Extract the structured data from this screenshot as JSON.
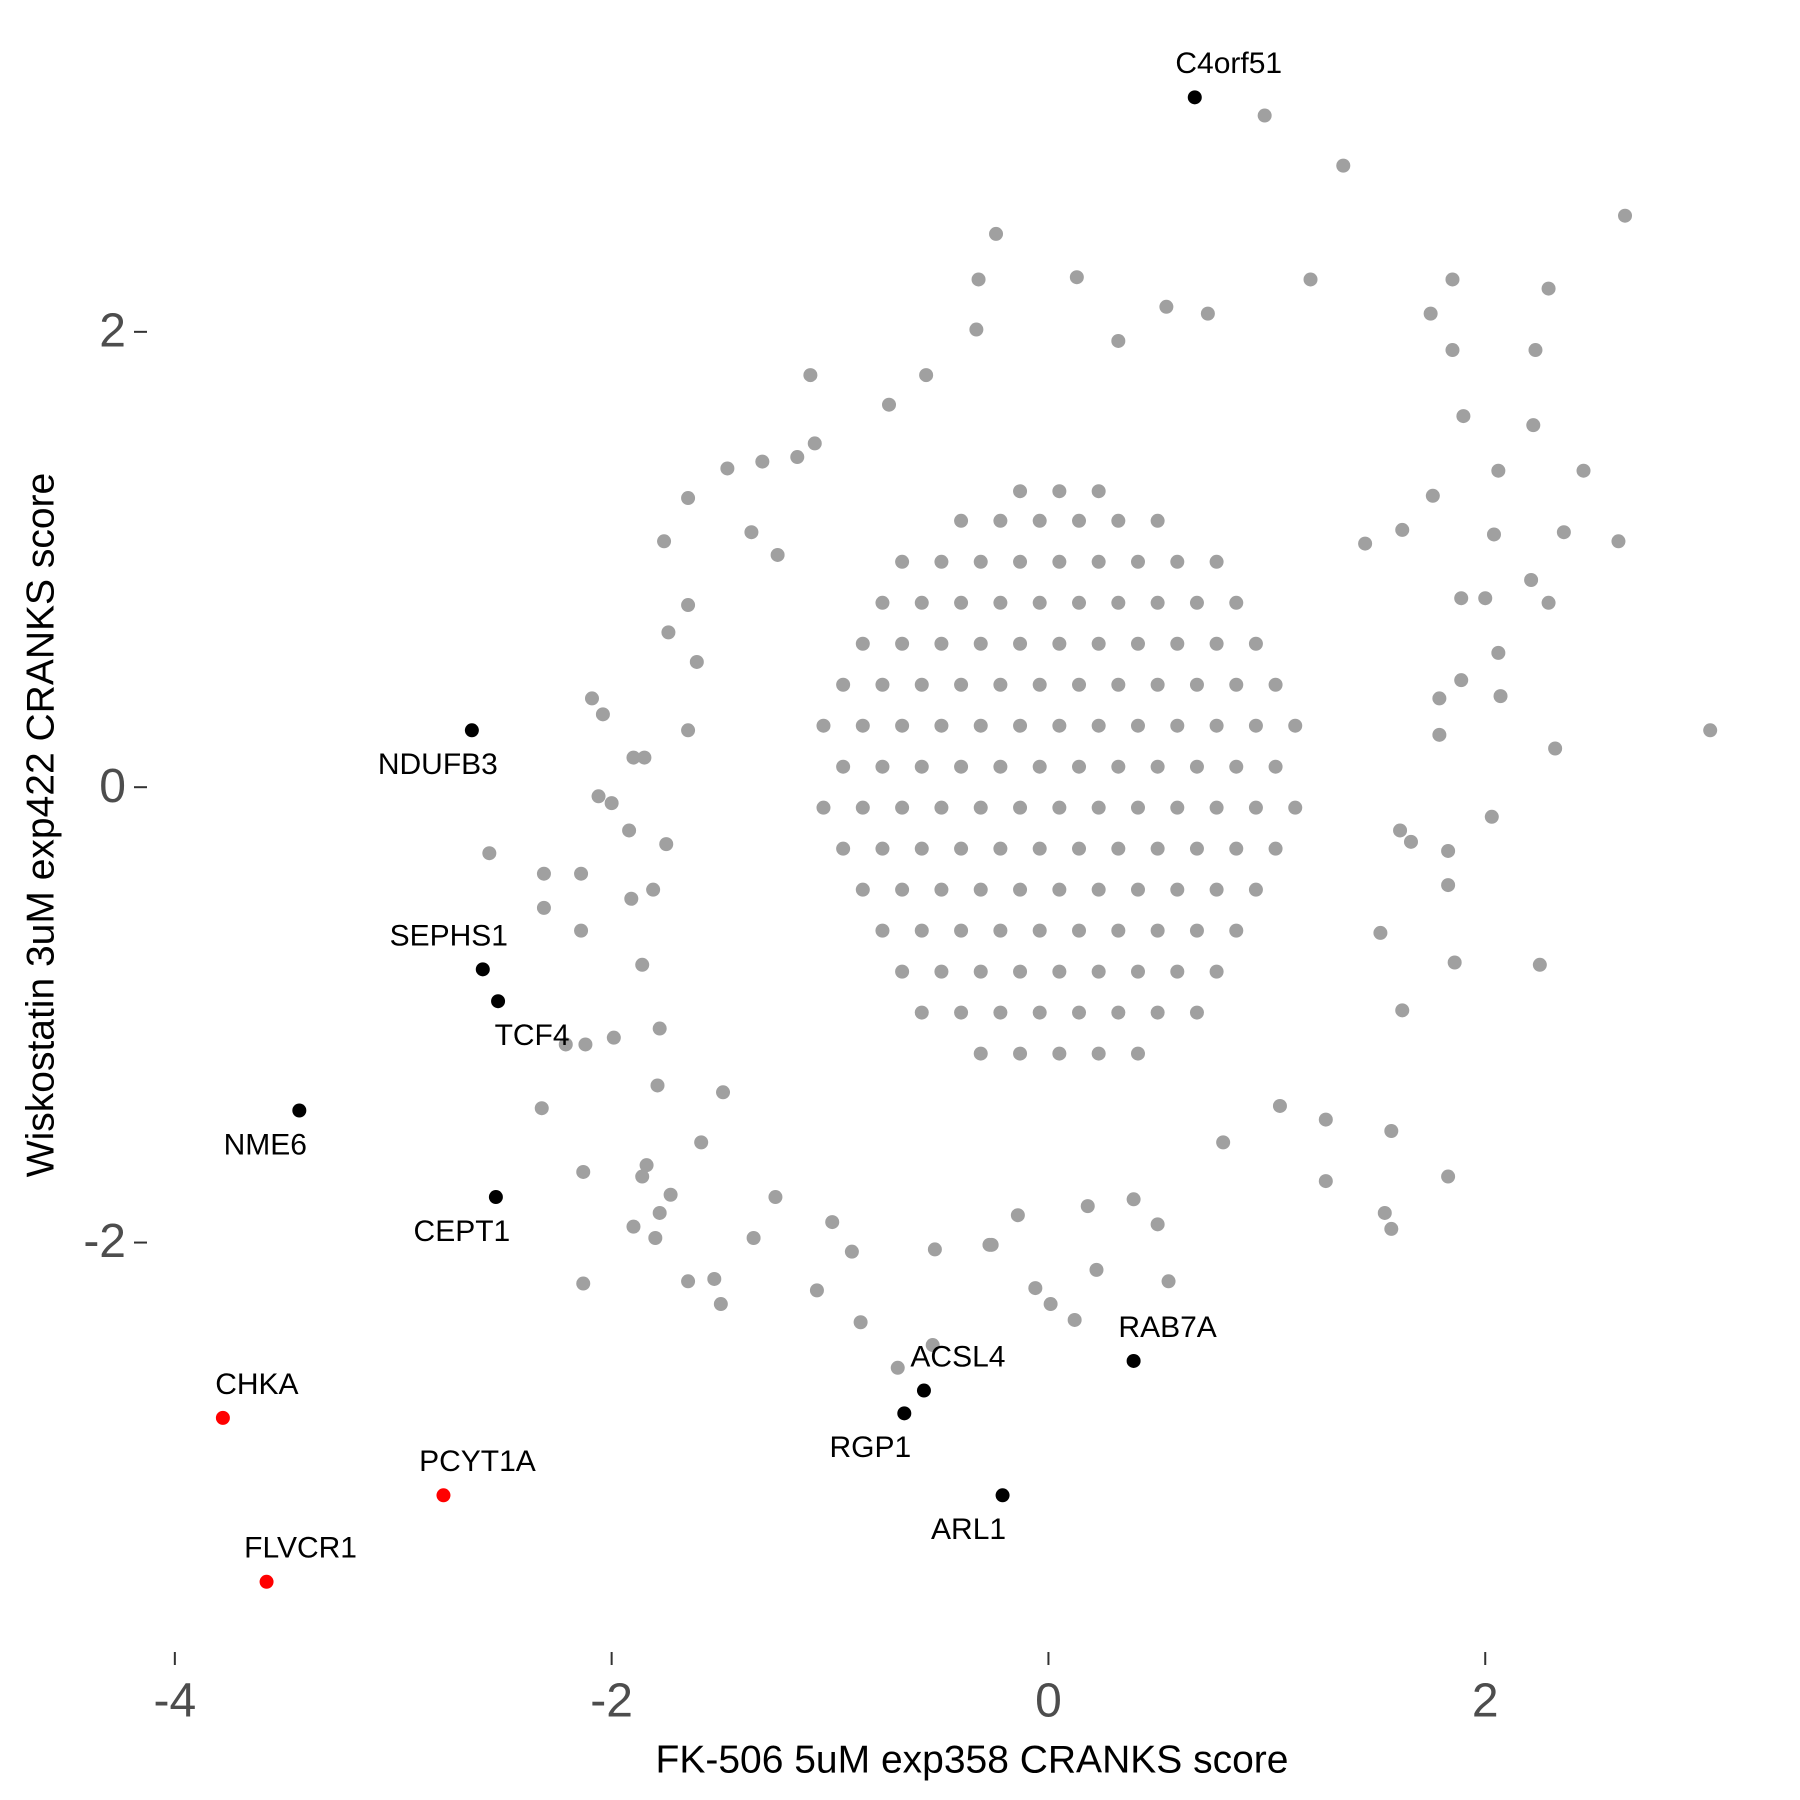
{
  "chart_data": {
    "type": "scatter",
    "x_label": "FK-506 5uM exp358 CRANKS score",
    "y_label": "Wiskostatin 3uM exp422 CRANKS score",
    "xlim": [
      -4.1,
      3.4
    ],
    "ylim": [
      -3.75,
      3.15
    ],
    "xticks": [
      -4,
      -2,
      0,
      2
    ],
    "yticks": [
      -2,
      0,
      2
    ],
    "grid": false,
    "series": [
      {
        "color": "#a0a0a0",
        "x": [
          0.99,
          1.35,
          2.64,
          -0.24,
          0.13,
          -0.32,
          1.2,
          1.85,
          2.29,
          1.75,
          -1.09,
          2.23,
          1.85,
          2.22,
          2.45,
          2.61,
          2.36,
          3.03,
          2.32,
          2.21,
          2.29,
          2.06,
          2.07,
          2.25,
          2.04,
          2.06,
          1.83,
          1.57,
          1.27,
          0.55,
          0.22,
          0.12,
          0.01,
          -0.06,
          -0.53,
          -0.69,
          -0.86,
          -1.06,
          -0.9,
          -0.26,
          -1.5,
          -1.53,
          -1.65,
          -2.13,
          -2.13,
          -1.9,
          -1.84,
          -1.78,
          -1.8,
          -2.32,
          -2.21,
          -2.12,
          -1.99,
          -2.14,
          -2.31,
          -2.31,
          -2.14,
          -2.56,
          -2.06,
          -2.0,
          -2.09,
          -2.04,
          -1.9,
          -1.74,
          -1.76,
          -1.65,
          -1.47,
          -1.31,
          -1.15,
          -1.07,
          -0.73,
          -0.56,
          -0.33,
          0.54,
          0.73,
          0.32,
          1.45,
          1.62,
          1.76,
          1.9,
          1.89,
          1.79,
          1.89,
          2.03,
          1.66,
          1.83,
          1.86,
          1.62,
          1.57,
          1.54,
          1.27,
          1.06,
          0.8,
          0.5,
          0.39,
          0.18,
          -0.14,
          -0.27,
          -0.52,
          -0.99,
          -1.25,
          -1.35,
          -1.73,
          -1.86,
          -1.59,
          -1.49,
          -1.79,
          -1.78,
          -1.86,
          -1.91,
          -1.81,
          -1.75,
          -1.92,
          -1.85,
          -1.65,
          -1.61,
          -1.65,
          -1.36,
          -1.24,
          2.0,
          1.79,
          1.61,
          1.52,
          1.83,
          -0.31,
          -0.13,
          0.05,
          0.23,
          0.41,
          -0.58,
          -0.4,
          -0.22,
          -0.04,
          0.14,
          0.32,
          0.5,
          0.68,
          -0.67,
          -0.49,
          -0.31,
          -0.13,
          0.05,
          0.23,
          0.41,
          0.59,
          0.77,
          -0.76,
          -0.58,
          -0.4,
          -0.22,
          -0.04,
          0.14,
          0.32,
          0.5,
          0.68,
          0.86,
          -0.85,
          -0.67,
          -0.49,
          -0.31,
          -0.13,
          0.05,
          0.23,
          0.41,
          0.59,
          0.77,
          0.95,
          -0.94,
          -0.76,
          -0.58,
          -0.4,
          -0.22,
          -0.04,
          0.14,
          0.32,
          0.5,
          0.68,
          0.86,
          1.04,
          -1.03,
          -0.85,
          -0.67,
          -0.49,
          -0.31,
          -0.13,
          0.05,
          0.23,
          0.41,
          0.59,
          0.77,
          0.95,
          1.13,
          -0.94,
          -0.76,
          -0.58,
          -0.4,
          -0.22,
          -0.04,
          0.14,
          0.32,
          0.5,
          0.68,
          0.86,
          1.04,
          -1.03,
          -0.85,
          -0.67,
          -0.49,
          -0.31,
          -0.13,
          0.05,
          0.23,
          0.41,
          0.59,
          0.77,
          0.95,
          1.13,
          -0.94,
          -0.76,
          -0.58,
          -0.4,
          -0.22,
          -0.04,
          0.14,
          0.32,
          0.5,
          0.68,
          0.86,
          1.04,
          -0.85,
          -0.67,
          -0.49,
          -0.31,
          -0.13,
          0.05,
          0.23,
          0.41,
          0.59,
          0.77,
          0.95,
          -0.76,
          -0.58,
          -0.4,
          -0.22,
          -0.04,
          0.14,
          0.32,
          0.5,
          0.68,
          0.86,
          -0.67,
          -0.49,
          -0.31,
          -0.13,
          0.05,
          0.23,
          0.41,
          0.59,
          0.77,
          -0.4,
          -0.22,
          -0.04,
          0.14,
          0.32,
          0.5,
          -0.13,
          0.05,
          0.23
        ],
        "y": [
          2.95,
          2.73,
          2.51,
          2.43,
          2.24,
          2.23,
          2.23,
          2.23,
          2.19,
          2.08,
          1.81,
          1.92,
          1.92,
          1.59,
          1.39,
          1.08,
          1.12,
          0.25,
          0.17,
          0.91,
          0.81,
          0.59,
          0.4,
          -0.78,
          1.11,
          1.39,
          -1.71,
          -1.94,
          -1.73,
          -2.17,
          -2.12,
          -2.34,
          -2.27,
          -2.2,
          -2.45,
          -2.55,
          -2.35,
          -2.21,
          -2.04,
          -2.01,
          -2.27,
          -2.16,
          -2.17,
          -2.18,
          -1.69,
          -1.93,
          -1.66,
          -1.87,
          -1.98,
          -1.41,
          -1.13,
          -1.13,
          -1.1,
          -0.63,
          -0.53,
          -0.38,
          -0.38,
          -0.29,
          -0.04,
          -0.07,
          0.39,
          0.32,
          0.13,
          0.68,
          1.08,
          1.27,
          1.4,
          1.43,
          1.45,
          1.51,
          1.68,
          1.81,
          2.01,
          2.11,
          2.08,
          1.96,
          1.07,
          1.13,
          1.28,
          1.63,
          0.83,
          0.39,
          0.47,
          -0.13,
          -0.24,
          -0.28,
          -0.77,
          -0.98,
          -1.51,
          -1.87,
          -1.46,
          -1.4,
          -1.56,
          -1.92,
          -1.81,
          -1.84,
          -1.88,
          -2.01,
          -2.03,
          -1.91,
          -1.8,
          -1.98,
          -1.79,
          -1.71,
          -1.56,
          -1.34,
          -1.31,
          -1.06,
          -0.78,
          -0.49,
          -0.45,
          -0.25,
          -0.19,
          0.13,
          0.25,
          0.55,
          0.8,
          1.12,
          1.02,
          0.83,
          0.23,
          -0.19,
          -0.64,
          -0.43,
          -1.17,
          -1.17,
          -1.17,
          -1.17,
          -1.17,
          -0.99,
          -0.99,
          -0.99,
          -0.99,
          -0.99,
          -0.99,
          -0.99,
          -0.99,
          -0.81,
          -0.81,
          -0.81,
          -0.81,
          -0.81,
          -0.81,
          -0.81,
          -0.81,
          -0.81,
          -0.63,
          -0.63,
          -0.63,
          -0.63,
          -0.63,
          -0.63,
          -0.63,
          -0.63,
          -0.63,
          -0.63,
          -0.45,
          -0.45,
          -0.45,
          -0.45,
          -0.45,
          -0.45,
          -0.45,
          -0.45,
          -0.45,
          -0.45,
          -0.45,
          -0.27,
          -0.27,
          -0.27,
          -0.27,
          -0.27,
          -0.27,
          -0.27,
          -0.27,
          -0.27,
          -0.27,
          -0.27,
          -0.27,
          -0.09,
          -0.09,
          -0.09,
          -0.09,
          -0.09,
          -0.09,
          -0.09,
          -0.09,
          -0.09,
          -0.09,
          -0.09,
          -0.09,
          -0.09,
          0.09,
          0.09,
          0.09,
          0.09,
          0.09,
          0.09,
          0.09,
          0.09,
          0.09,
          0.09,
          0.09,
          0.09,
          0.27,
          0.27,
          0.27,
          0.27,
          0.27,
          0.27,
          0.27,
          0.27,
          0.27,
          0.27,
          0.27,
          0.27,
          0.27,
          0.45,
          0.45,
          0.45,
          0.45,
          0.45,
          0.45,
          0.45,
          0.45,
          0.45,
          0.45,
          0.45,
          0.45,
          0.63,
          0.63,
          0.63,
          0.63,
          0.63,
          0.63,
          0.63,
          0.63,
          0.63,
          0.63,
          0.63,
          0.81,
          0.81,
          0.81,
          0.81,
          0.81,
          0.81,
          0.81,
          0.81,
          0.81,
          0.81,
          0.99,
          0.99,
          0.99,
          0.99,
          0.99,
          0.99,
          0.99,
          0.99,
          0.99,
          1.17,
          1.17,
          1.17,
          1.17,
          1.17,
          1.17,
          1.3,
          1.3,
          1.3
        ]
      },
      {
        "color": "#000000",
        "labels": [
          "C4orf51",
          "NDUFB3",
          "SEPHS1",
          "TCF4",
          "NME6",
          "CEPT1",
          "RAB7A",
          "ACSL4",
          "RGP1",
          "ARL1"
        ],
        "x": [
          0.67,
          -2.64,
          -2.59,
          -2.52,
          -3.43,
          -2.53,
          0.39,
          -0.57,
          -0.66,
          -0.21
        ],
        "y": [
          3.03,
          0.25,
          -0.8,
          -0.94,
          -1.42,
          -1.8,
          -2.52,
          -2.65,
          -2.75,
          -3.11
        ]
      },
      {
        "color": "#ff0000",
        "labels": [
          "CHKA",
          "PCYT1A",
          "FLVCR1"
        ],
        "x": [
          -3.78,
          -2.77,
          -3.58
        ],
        "y": [
          -2.77,
          -3.11,
          -3.49
        ]
      }
    ]
  }
}
